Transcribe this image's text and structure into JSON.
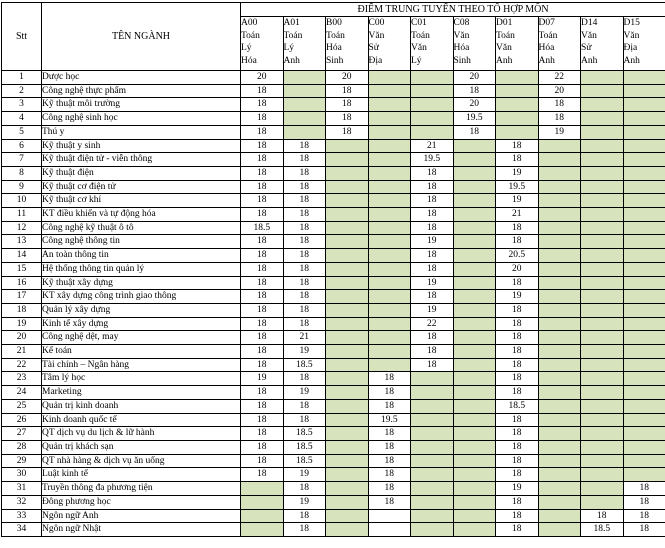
{
  "title": "ĐIỂM TRUNG TUYỂN THEO TỔ HỢP MÔN",
  "header": {
    "stt_label": "Stt",
    "name_label": "TÊN NGÀNH",
    "columns": [
      {
        "code": "A00",
        "subjects": [
          "Toán",
          "Lý",
          "Hóa"
        ]
      },
      {
        "code": "A01",
        "subjects": [
          "Toán",
          "Lý",
          "Anh"
        ]
      },
      {
        "code": "B00",
        "subjects": [
          "Toán",
          "Hóa",
          "Sinh"
        ]
      },
      {
        "code": "C00",
        "subjects": [
          "Văn",
          "Sử",
          "Địa"
        ]
      },
      {
        "code": "C01",
        "subjects": [
          "Toán",
          "Văn",
          "Lý"
        ]
      },
      {
        "code": "C08",
        "subjects": [
          "Văn",
          "Hóa",
          "Sinh"
        ]
      },
      {
        "code": "D01",
        "subjects": [
          "Toán",
          "Văn",
          "Anh"
        ]
      },
      {
        "code": "D07",
        "subjects": [
          "Toán",
          "Hóa",
          "Anh"
        ]
      },
      {
        "code": "D14",
        "subjects": [
          "Văn",
          "Sử",
          "Anh"
        ]
      },
      {
        "code": "D15",
        "subjects": [
          "Văn",
          "Địa",
          "Anh"
        ]
      }
    ]
  },
  "colors": {
    "empty_cell_bg": "#d6e3bc",
    "highlight_text": "#ff0000",
    "border": "#000000"
  },
  "rows": [
    {
      "stt": "1",
      "name": "Dược học",
      "cells": [
        {
          "v": "20",
          "red": true
        },
        null,
        {
          "v": "20",
          "red": true
        },
        null,
        null,
        {
          "v": "20",
          "red": true
        },
        null,
        {
          "v": "22",
          "red": true
        },
        null,
        null
      ]
    },
    {
      "stt": "2",
      "name": "Công nghệ thực phẩm",
      "cells": [
        {
          "v": "18"
        },
        null,
        {
          "v": "18"
        },
        null,
        null,
        {
          "v": "18"
        },
        null,
        {
          "v": "20",
          "red": true
        },
        null,
        null
      ]
    },
    {
      "stt": "3",
      "name": "Kỹ thuật môi trường",
      "cells": [
        {
          "v": "18"
        },
        null,
        {
          "v": "18"
        },
        null,
        null,
        {
          "v": "20",
          "red": true
        },
        null,
        {
          "v": "18"
        },
        null,
        null
      ]
    },
    {
      "stt": "4",
      "name": "Công nghệ sinh học",
      "cells": [
        {
          "v": "18"
        },
        null,
        {
          "v": "18"
        },
        null,
        null,
        {
          "v": "19.5",
          "red": true
        },
        null,
        {
          "v": "18"
        },
        null,
        null
      ]
    },
    {
      "stt": "5",
      "name": "Thú y",
      "cells": [
        {
          "v": "18"
        },
        null,
        {
          "v": "18"
        },
        null,
        null,
        {
          "v": "18"
        },
        null,
        {
          "v": "19",
          "red": true
        },
        null,
        null
      ]
    },
    {
      "stt": "6",
      "name": "Kỹ thuật y sinh",
      "cells": [
        {
          "v": "18"
        },
        {
          "v": "18"
        },
        null,
        null,
        {
          "v": "21",
          "red": true
        },
        null,
        {
          "v": "18"
        },
        null,
        null,
        null
      ]
    },
    {
      "stt": "7",
      "name": "Kỹ thuật điện tử - viễn thông",
      "cells": [
        {
          "v": "18"
        },
        {
          "v": "18"
        },
        null,
        null,
        {
          "v": "19.5",
          "red": true
        },
        null,
        {
          "v": "18"
        },
        null,
        null,
        null
      ]
    },
    {
      "stt": "8",
      "name": "Kỹ thuật điện",
      "cells": [
        {
          "v": "18"
        },
        {
          "v": "18"
        },
        null,
        null,
        {
          "v": "18"
        },
        null,
        {
          "v": "19",
          "red": true
        },
        null,
        null,
        null
      ]
    },
    {
      "stt": "9",
      "name": "Kỹ thuật cơ điện tử",
      "cells": [
        {
          "v": "18"
        },
        {
          "v": "18"
        },
        null,
        null,
        {
          "v": "18"
        },
        null,
        {
          "v": "19.5",
          "red": true
        },
        null,
        null,
        null
      ]
    },
    {
      "stt": "10",
      "name": "Kỹ thuật cơ khí",
      "cells": [
        {
          "v": "18"
        },
        {
          "v": "18"
        },
        null,
        null,
        {
          "v": "18"
        },
        null,
        {
          "v": "19",
          "red": true
        },
        null,
        null,
        null
      ]
    },
    {
      "stt": "11",
      "name": "KT điều khiển và tự động hóa",
      "cells": [
        {
          "v": "18"
        },
        {
          "v": "18"
        },
        null,
        null,
        {
          "v": "18"
        },
        null,
        {
          "v": "21",
          "red": true
        },
        null,
        null,
        null
      ]
    },
    {
      "stt": "12",
      "name": "Công nghệ kỹ thuật ô tô",
      "cells": [
        {
          "v": "18.5",
          "red": true
        },
        {
          "v": "18"
        },
        null,
        null,
        {
          "v": "18"
        },
        null,
        {
          "v": "18"
        },
        null,
        null,
        null
      ]
    },
    {
      "stt": "13",
      "name": "Công nghệ thông tin",
      "cells": [
        {
          "v": "18"
        },
        {
          "v": "18"
        },
        null,
        null,
        {
          "v": "19",
          "red": true
        },
        null,
        {
          "v": "18"
        },
        null,
        null,
        null
      ]
    },
    {
      "stt": "14",
      "name": "An toàn thông tin",
      "cells": [
        {
          "v": "18"
        },
        {
          "v": "18"
        },
        null,
        null,
        {
          "v": "18"
        },
        null,
        {
          "v": "20.5",
          "red": true
        },
        null,
        null,
        null
      ]
    },
    {
      "stt": "15",
      "name": "Hệ thống thông tin quản lý",
      "cells": [
        {
          "v": "18"
        },
        {
          "v": "18"
        },
        null,
        null,
        {
          "v": "18"
        },
        null,
        {
          "v": "20",
          "red": true
        },
        null,
        null,
        null
      ]
    },
    {
      "stt": "16",
      "name": "Kỹ thuật xây dựng",
      "cells": [
        {
          "v": "18"
        },
        {
          "v": "18"
        },
        null,
        null,
        {
          "v": "19",
          "red": true
        },
        null,
        {
          "v": "18"
        },
        null,
        null,
        null
      ]
    },
    {
      "stt": "17",
      "name": "KT xây dựng công trình giao thông",
      "cells": [
        {
          "v": "18"
        },
        {
          "v": "18"
        },
        null,
        null,
        {
          "v": "18"
        },
        null,
        {
          "v": "19",
          "red": true
        },
        null,
        null,
        null
      ]
    },
    {
      "stt": "18",
      "name": "Quản lý xây dựng",
      "cells": [
        {
          "v": "18"
        },
        {
          "v": "18"
        },
        null,
        null,
        {
          "v": "19",
          "red": true
        },
        null,
        {
          "v": "18"
        },
        null,
        null,
        null
      ]
    },
    {
      "stt": "19",
      "name": "Kinh tế xây dựng",
      "cells": [
        {
          "v": "18"
        },
        {
          "v": "18"
        },
        null,
        null,
        {
          "v": "22",
          "red": true
        },
        null,
        {
          "v": "18"
        },
        null,
        null,
        null
      ]
    },
    {
      "stt": "20",
      "name": "Công nghệ dệt, may",
      "cells": [
        {
          "v": "18"
        },
        {
          "v": "21",
          "red": true
        },
        null,
        null,
        {
          "v": "18"
        },
        null,
        {
          "v": "18"
        },
        null,
        null,
        null
      ]
    },
    {
      "stt": "21",
      "name": "Kế toán",
      "cells": [
        {
          "v": "18"
        },
        {
          "v": "19",
          "red": true
        },
        null,
        null,
        {
          "v": "18"
        },
        null,
        {
          "v": "18"
        },
        null,
        null,
        null
      ]
    },
    {
      "stt": "22",
      "name": "Tài chính – Ngân hàng",
      "cells": [
        {
          "v": "18"
        },
        {
          "v": "18.5",
          "red": true
        },
        null,
        null,
        {
          "v": "18"
        },
        null,
        {
          "v": "18"
        },
        null,
        null,
        null
      ]
    },
    {
      "stt": "23",
      "name": "Tâm lý học",
      "cells": [
        {
          "v": "19"
        },
        {
          "v": "18"
        },
        null,
        {
          "v": "18"
        },
        null,
        null,
        {
          "v": "18"
        },
        null,
        null,
        null
      ]
    },
    {
      "stt": "24",
      "name": "Marketing",
      "cells": [
        {
          "v": "18"
        },
        {
          "v": "19",
          "red": true
        },
        null,
        {
          "v": "18"
        },
        null,
        null,
        {
          "v": "18"
        },
        null,
        null,
        null
      ]
    },
    {
      "stt": "25",
      "name": "Quản trị kinh doanh",
      "cells": [
        {
          "v": "18"
        },
        {
          "v": "18"
        },
        null,
        {
          "v": "18"
        },
        null,
        null,
        {
          "v": "18.5",
          "red": true
        },
        null,
        null,
        null
      ]
    },
    {
      "stt": "26",
      "name": "Kinh doanh quốc tế",
      "cells": [
        {
          "v": "18"
        },
        {
          "v": "18"
        },
        null,
        {
          "v": "19.5",
          "red": true
        },
        null,
        null,
        {
          "v": "18"
        },
        null,
        null,
        null
      ]
    },
    {
      "stt": "27",
      "name": "QT dịch vụ du lịch & lữ hành",
      "cells": [
        {
          "v": "18"
        },
        {
          "v": "18.5",
          "red": true
        },
        null,
        {
          "v": "18"
        },
        null,
        null,
        {
          "v": "18"
        },
        null,
        null,
        null
      ]
    },
    {
      "stt": "28",
      "name": "Quản trị khách sạn",
      "cells": [
        {
          "v": "18"
        },
        {
          "v": "18.5",
          "red": true
        },
        null,
        {
          "v": "18"
        },
        null,
        null,
        {
          "v": "18"
        },
        null,
        null,
        null
      ]
    },
    {
      "stt": "29",
      "name": "QT nhà hàng & dịch vụ ăn uống",
      "cells": [
        {
          "v": "18"
        },
        {
          "v": "18.5",
          "red": true
        },
        null,
        {
          "v": "18"
        },
        null,
        null,
        {
          "v": "18"
        },
        null,
        null,
        null
      ]
    },
    {
      "stt": "30",
      "name": "Luật kinh tế",
      "cells": [
        {
          "v": "18"
        },
        {
          "v": "19",
          "red": true
        },
        null,
        {
          "v": "18"
        },
        null,
        null,
        {
          "v": "18"
        },
        null,
        null,
        null
      ]
    },
    {
      "stt": "31",
      "name": "Truyền thông đa phương tiện",
      "cells": [
        null,
        {
          "v": "18"
        },
        null,
        {
          "v": "18"
        },
        null,
        null,
        {
          "v": "19",
          "red": true
        },
        null,
        null,
        {
          "v": "18"
        }
      ]
    },
    {
      "stt": "32",
      "name": "Đông phương học",
      "cells": [
        null,
        {
          "v": "19",
          "red": true
        },
        null,
        {
          "v": "18"
        },
        null,
        null,
        {
          "v": "18"
        },
        null,
        null,
        {
          "v": "18"
        }
      ]
    },
    {
      "stt": "33",
      "name": "Ngôn ngữ Anh",
      "cells": [
        null,
        {
          "v": "18"
        },
        null,
        {
          "v": ""
        },
        null,
        null,
        {
          "v": "18"
        },
        null,
        {
          "v": "18"
        },
        {
          "v": "18"
        }
      ]
    },
    {
      "stt": "34",
      "name": "Ngôn ngữ Nhật",
      "cells": [
        null,
        {
          "v": "18"
        },
        null,
        {
          "v": ""
        },
        null,
        null,
        {
          "v": "18"
        },
        null,
        {
          "v": "18.5",
          "red": true
        },
        {
          "v": "18"
        }
      ]
    }
  ]
}
